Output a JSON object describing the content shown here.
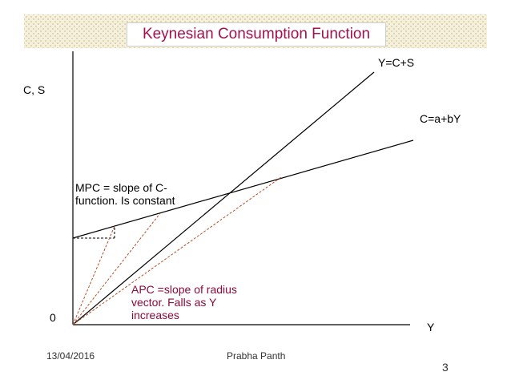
{
  "title": "Keynesian Consumption Function",
  "axis": {
    "y_label": "C, S",
    "x_label": "Y",
    "origin_label": "0"
  },
  "lines": {
    "income_line_label": "Y=C+S",
    "consumption_line_label": "C=a+bY"
  },
  "annotations": {
    "mpc_line1": "MPC = slope of C-",
    "mpc_line2": "function. Is constant",
    "apc_line1": "APC =slope of radius",
    "apc_line2": "vector. Falls as Y",
    "apc_line3": "increases"
  },
  "colors": {
    "title": "#a0134f",
    "apc_text": "#8b0a3a",
    "radius_vector": "#b5502c"
  },
  "footer": {
    "date": "13/04/2016",
    "author": "Prabha Panth",
    "page_number": "3"
  }
}
